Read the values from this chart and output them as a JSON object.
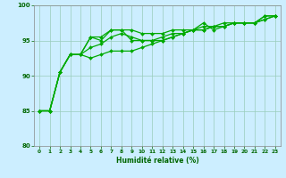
{
  "xlabel": "Humidité relative (%)",
  "background_color": "#cceeff",
  "grid_color": "#99ccbb",
  "line_color": "#00aa00",
  "xlim": [
    -0.5,
    23.5
  ],
  "ylim": [
    80,
    100
  ],
  "yticks": [
    80,
    85,
    90,
    95,
    100
  ],
  "xticks": [
    0,
    1,
    2,
    3,
    4,
    5,
    6,
    7,
    8,
    9,
    10,
    11,
    12,
    13,
    14,
    15,
    16,
    17,
    18,
    19,
    20,
    21,
    22,
    23
  ],
  "series": [
    [
      85,
      85,
      90.5,
      93,
      93,
      95.5,
      95.5,
      96.5,
      96.5,
      95,
      95,
      95,
      95.5,
      96,
      96,
      96.5,
      97.5,
      96.5,
      97,
      97.5,
      97.5,
      97.5,
      98.5,
      98.5
    ],
    [
      85,
      85,
      90.5,
      93,
      93,
      95.5,
      95,
      96.5,
      96.5,
      96.5,
      96,
      96,
      96,
      96.5,
      96.5,
      96.5,
      97,
      97,
      97.5,
      97.5,
      97.5,
      97.5,
      98.5,
      98.5
    ],
    [
      85,
      85,
      90.5,
      93,
      93,
      94,
      94.5,
      95.5,
      96,
      95.5,
      95,
      95,
      95,
      95.5,
      96,
      96.5,
      96.5,
      97,
      97,
      97.5,
      97.5,
      97.5,
      98,
      98.5
    ],
    [
      85,
      85,
      90.5,
      93,
      93,
      92.5,
      93,
      93.5,
      93.5,
      93.5,
      94,
      94.5,
      95,
      95.5,
      96,
      96.5,
      96.5,
      97,
      97,
      97.5,
      97.5,
      97.5,
      98,
      98.5
    ]
  ]
}
